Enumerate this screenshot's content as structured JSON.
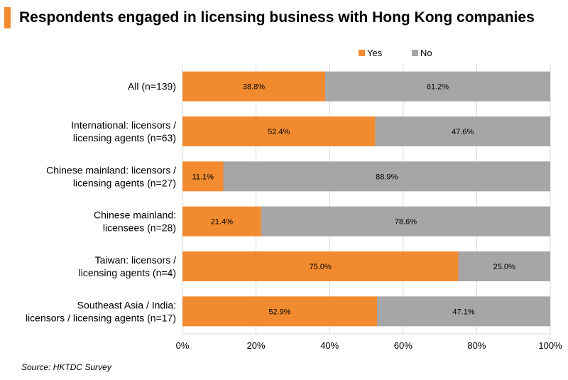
{
  "title": "Respondents engaged in licensing business with Hong Kong companies",
  "source": "Source: HKTDC Survey",
  "colors": {
    "accent": "#f28b30",
    "yes": "#f28b30",
    "no": "#a6a6a6",
    "grid": "#d9d9d9"
  },
  "chart_data": {
    "type": "bar",
    "orientation": "horizontal",
    "stacked": true,
    "categories": [
      [
        "All (n=139)"
      ],
      [
        "International: licensors /",
        "licensing agents (n=63)"
      ],
      [
        "Chinese mainland: licensors /",
        "licensing agents (n=27)"
      ],
      [
        "Chinese mainland:",
        "licensees (n=28)"
      ],
      [
        "Taiwan: licensors /",
        "licensing agents (n=4)"
      ],
      [
        "Southeast Asia / India:",
        "licensors / licensing agents (n=17)"
      ]
    ],
    "series": [
      {
        "name": "Yes",
        "color": "#f28b30",
        "values": [
          38.8,
          52.4,
          11.1,
          21.4,
          75.0,
          52.9
        ],
        "labels": [
          "38.8%",
          "52.4%",
          "11.1%",
          "21.4%",
          "75.0%",
          "52.9%"
        ]
      },
      {
        "name": "No",
        "color": "#a6a6a6",
        "values": [
          61.2,
          47.6,
          88.9,
          78.6,
          25.0,
          47.1
        ],
        "labels": [
          "61.2%",
          "47.6%",
          "88.9%",
          "78.6%",
          "25.0%",
          "47.1%"
        ]
      }
    ],
    "xlim": [
      0,
      100
    ],
    "xticks": [
      0,
      20,
      40,
      60,
      80,
      100
    ],
    "xtick_labels": [
      "0%",
      "20%",
      "40%",
      "60%",
      "80%",
      "100%"
    ],
    "grid": true,
    "legend": "top-right"
  }
}
